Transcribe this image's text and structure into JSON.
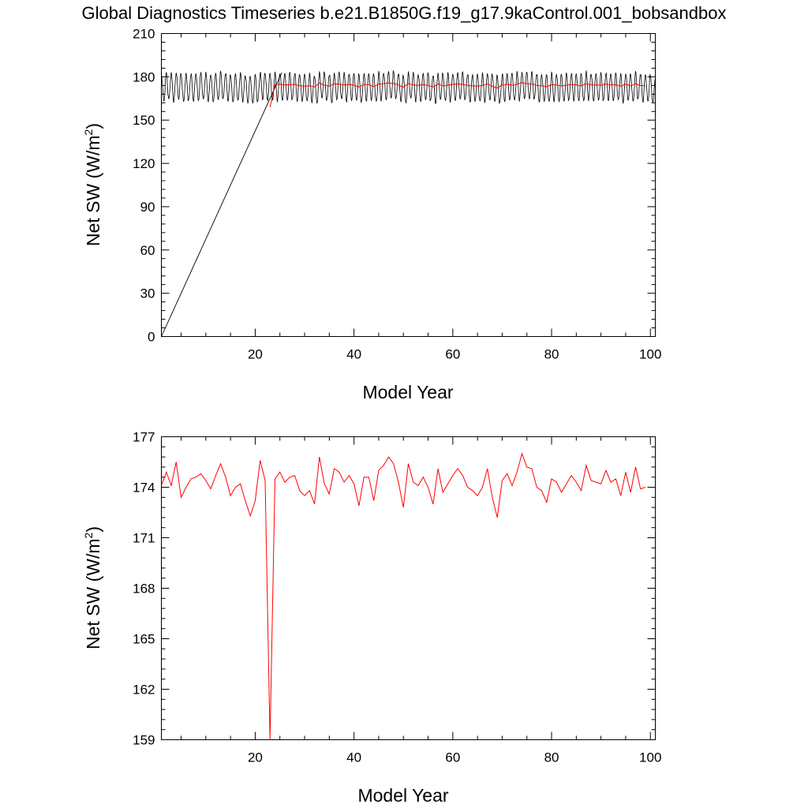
{
  "title": "Global Diagnostics Timeseries b.e21.B1850G.f19_g17.9kaControl.001_bobsandbox",
  "colors": {
    "monthly": "#000000",
    "annual": "#ff0000"
  },
  "chart_data": [
    {
      "type": "line",
      "xlabel": "Model Year",
      "ylabel": "Net SW (W/m",
      "ylabel_sup": "2",
      "ylabel_close": ")",
      "xlim": [
        1,
        101
      ],
      "ylim": [
        0,
        210
      ],
      "xticks": [
        20,
        40,
        60,
        80,
        100
      ],
      "yticks": [
        0,
        30,
        60,
        90,
        120,
        150,
        180,
        210
      ],
      "series": [
        {
          "style": "monthly",
          "color": "#000000",
          "ramp": [
            [
              1,
              0
            ],
            [
              25.4,
              183
            ]
          ],
          "seasonal_mean": 172.5,
          "seasonal_amplitude": 9.5,
          "samples_per_year": 12
        },
        {
          "style": "annual",
          "color": "#ff0000",
          "x_start": 23,
          "values_ref": "annual"
        }
      ]
    },
    {
      "type": "line",
      "xlabel": "Model Year",
      "ylabel": "Net SW (W/m",
      "ylabel_sup": "2",
      "ylabel_close": ")",
      "xlim": [
        1,
        101
      ],
      "ylim": [
        159,
        177
      ],
      "xticks": [
        20,
        40,
        60,
        80,
        100
      ],
      "yticks": [
        159,
        162,
        165,
        168,
        171,
        174,
        177
      ],
      "series": [
        {
          "style": "annual",
          "color": "#ff0000",
          "x_start": 1,
          "values_ref": "annual"
        }
      ]
    }
  ],
  "annual": {
    "x_start": 1,
    "values": [
      174.1,
      174.9,
      174.1,
      175.5,
      173.4,
      174.0,
      174.5,
      174.6,
      174.8,
      174.4,
      173.9,
      174.7,
      175.4,
      174.6,
      173.5,
      174.0,
      174.2,
      173.2,
      172.3,
      173.2,
      175.6,
      174.4,
      159.0,
      174.5,
      174.9,
      174.3,
      174.6,
      174.7,
      173.8,
      173.5,
      173.8,
      173.0,
      175.8,
      174.2,
      173.6,
      175.1,
      174.9,
      174.3,
      174.7,
      174.2,
      172.9,
      174.6,
      174.6,
      173.2,
      175.0,
      175.3,
      175.8,
      175.4,
      174.3,
      172.8,
      175.4,
      174.3,
      174.1,
      174.6,
      174.0,
      173.0,
      175.1,
      173.7,
      174.2,
      174.7,
      175.1,
      174.7,
      174.0,
      173.8,
      173.5,
      174.0,
      175.1,
      173.4,
      172.2,
      174.4,
      174.8,
      174.1,
      174.9,
      176.0,
      175.2,
      175.1,
      174.0,
      173.8,
      173.1,
      174.5,
      174.3,
      173.7,
      174.2,
      174.7,
      174.3,
      173.8,
      175.3,
      174.4,
      174.3,
      174.2,
      175.0,
      174.3,
      174.5,
      173.5,
      174.9,
      173.7,
      175.2,
      173.9,
      174.0
    ]
  }
}
